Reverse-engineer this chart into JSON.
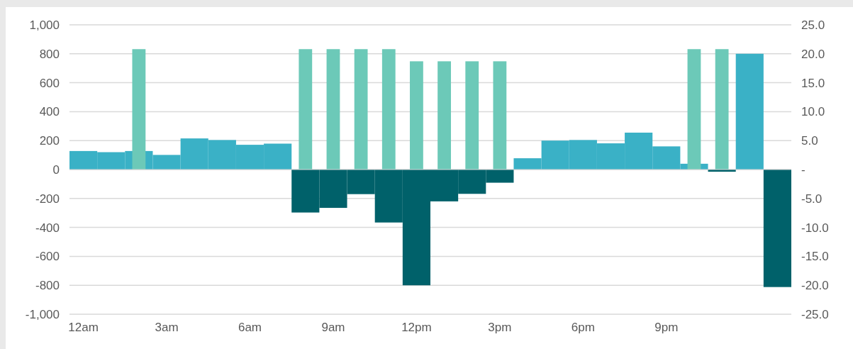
{
  "chart_data": {
    "type": "bar",
    "categories": [
      "12am",
      null,
      null,
      "3am",
      null,
      null,
      "6am",
      null,
      null,
      "9am",
      null,
      null,
      "12pm",
      null,
      null,
      "3pm",
      null,
      null,
      "6pm",
      null,
      null,
      "9pm",
      null,
      null,
      null,
      null
    ],
    "series": [
      {
        "color": "#3ab1c6",
        "values": [
          128,
          120,
          128,
          101,
          215,
          204,
          171,
          179,
          null,
          null,
          null,
          null,
          null,
          null,
          null,
          null,
          78,
          200,
          204,
          181,
          255,
          160,
          40,
          null,
          800,
          null
        ]
      },
      {
        "color": "#00616a",
        "values": [
          null,
          null,
          null,
          null,
          null,
          null,
          null,
          null,
          -297,
          -265,
          -170,
          -366,
          -800,
          -220,
          -168,
          -91,
          null,
          null,
          null,
          null,
          null,
          null,
          null,
          -15,
          null,
          -812
        ]
      },
      {
        "color": "#6cc9b8",
        "axis": "y2",
        "values": [
          null,
          null,
          20.8,
          null,
          null,
          null,
          null,
          null,
          20.8,
          20.8,
          20.8,
          20.8,
          18.7,
          18.7,
          18.7,
          18.7,
          null,
          null,
          null,
          null,
          null,
          null,
          20.8,
          20.8,
          null,
          null
        ]
      }
    ],
    "ylim": [
      -1000,
      1000
    ],
    "yticks": [
      {
        "value": -1000,
        "label": "-1,000"
      },
      -800,
      -600,
      -400,
      -200,
      0,
      200,
      400,
      600,
      800,
      {
        "value": 1000,
        "label": "1,000"
      }
    ],
    "y2lim": [
      -25,
      25
    ],
    "y2ticks": [
      {
        "value": -25,
        "label": "-25.0"
      },
      {
        "value": -20,
        "label": "-20.0"
      },
      {
        "value": -15,
        "label": "-15.0"
      },
      {
        "value": -10,
        "label": "-10.0"
      },
      {
        "value": -5,
        "label": "-5.0"
      },
      {
        "value": 0,
        "label": "-"
      },
      {
        "value": 5,
        "label": "5.0"
      },
      {
        "value": 10,
        "label": "10.0"
      },
      {
        "value": 15,
        "label": "15.0"
      },
      {
        "value": 20,
        "label": "20.0"
      },
      {
        "value": 25,
        "label": "25.0"
      }
    ],
    "grid": "y"
  }
}
